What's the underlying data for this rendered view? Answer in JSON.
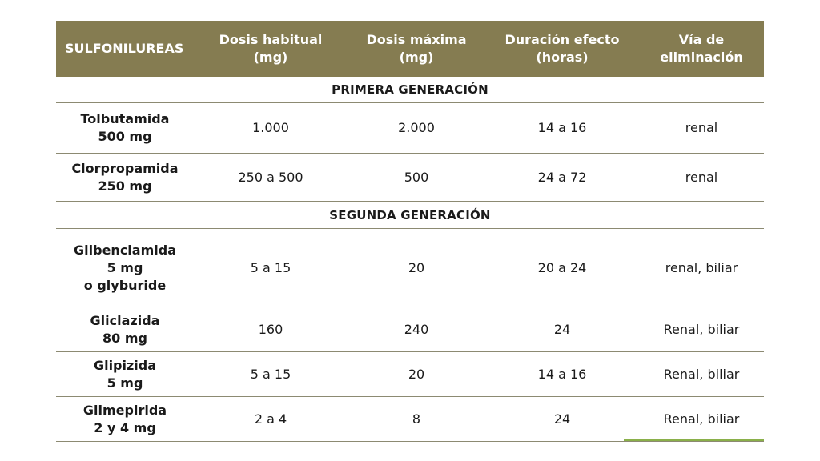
{
  "header": {
    "col0": "SULFONILUREAS",
    "col1": "Dosis habitual\n(mg)",
    "col2": "Dosis máxima\n(mg)",
    "col3": "Duración efecto\n(horas)",
    "col4": "Vía de\neliminación"
  },
  "sections": [
    {
      "title": "PRIMERA GENERACIÓN",
      "rows": [
        {
          "drug": "Tolbutamida\n500 mg",
          "usual": "1.000",
          "max": "2.000",
          "duration": "14 a 16",
          "route": "renal"
        },
        {
          "drug": "Clorpropamida\n250 mg",
          "usual": "250 a 500",
          "max": "500",
          "duration": "24 a 72",
          "route": "renal"
        }
      ]
    },
    {
      "title": "SEGUNDA GENERACIÓN",
      "rows": [
        {
          "drug": "Glibenclamida\n5 mg\no glyburide",
          "usual": "5 a 15",
          "max": "20",
          "duration": "20 a 24",
          "route": "renal, biliar"
        },
        {
          "drug": "Gliclazida\n80 mg",
          "usual": "160",
          "max": "240",
          "duration": "24",
          "route": "Renal, biliar"
        },
        {
          "drug": "Glipizida\n5 mg",
          "usual": "5 a 15",
          "max": "20",
          "duration": "14 a 16",
          "route": "Renal, biliar"
        },
        {
          "drug": "Glimepirida\n2 y 4 mg",
          "usual": "2 a 4",
          "max": "8",
          "duration": "24",
          "route": "Renal, biliar"
        }
      ]
    }
  ],
  "colors": {
    "header_bg": "#857c51",
    "accent_line": "#8ab04a"
  }
}
